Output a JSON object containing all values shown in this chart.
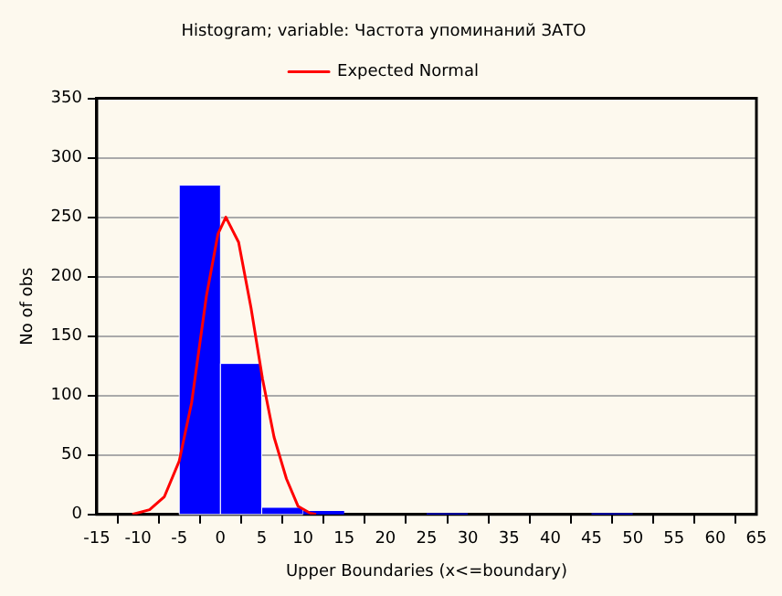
{
  "chart_data": {
    "type": "histogram",
    "title": "Histogram; variable: Частота упоминаний ЗАТО",
    "xlabel": "Upper Boundaries (x<=boundary)",
    "ylabel": "No of obs",
    "bins": [
      -5,
      0,
      5,
      10,
      15,
      20,
      25,
      30,
      35,
      40,
      45,
      50
    ],
    "values": [
      277,
      127,
      6,
      3,
      0,
      0,
      1,
      0,
      0,
      0,
      1
    ],
    "color": "#0000ff",
    "series": [
      {
        "name": "Expected Normal",
        "type": "line",
        "color": "#ff0000",
        "x": [
          -10.7,
          -8.6,
          -6.8,
          -5,
          -3.5,
          -1.7,
          -0.3,
          0.65,
          2.2,
          3.7,
          5.1,
          6.5,
          8,
          9.4,
          10.9,
          11.6
        ],
        "values": [
          0,
          4,
          15,
          45,
          94,
          184,
          236,
          250,
          229,
          174,
          114,
          65,
          30,
          7,
          1,
          0
        ]
      }
    ],
    "xlim": [
      -15,
      65
    ],
    "xticks": [
      -15,
      -10,
      -5,
      0,
      5,
      10,
      15,
      20,
      25,
      30,
      35,
      40,
      45,
      50,
      55,
      60,
      65
    ],
    "ylim": [
      0,
      350
    ],
    "yticks": [
      0,
      50,
      100,
      150,
      200,
      250,
      300,
      350
    ],
    "grid": "y",
    "legend": "top",
    "marker": "none"
  }
}
